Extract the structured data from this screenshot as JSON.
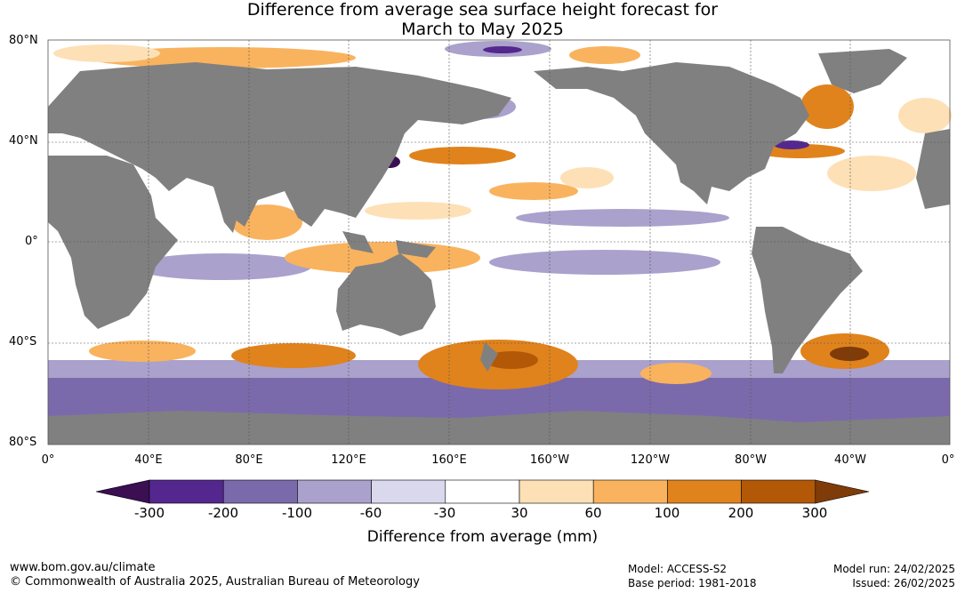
{
  "title": {
    "line1": "Difference from average sea surface height forecast for",
    "line2": "March to May 2025"
  },
  "lat_labels": [
    "80°N",
    "40°N",
    "0°",
    "40°S",
    "80°S"
  ],
  "lon_labels": [
    "0°",
    "40°E",
    "80°E",
    "120°E",
    "160°E",
    "160°W",
    "120°W",
    "80°W",
    "40°W",
    "0°"
  ],
  "colorbar": {
    "title": "Difference from average (mm)",
    "labels": [
      "-300",
      "-200",
      "-100",
      "-60",
      "-30",
      "30",
      "60",
      "100",
      "200",
      "300"
    ],
    "colors": [
      "#3b0f52",
      "#54278f",
      "#7b6aab",
      "#aaa1cc",
      "#d9d8ec",
      "#ffffff",
      "#fde0b6",
      "#f9b35e",
      "#e0831c",
      "#b35806",
      "#7f3b08"
    ]
  },
  "colors": {
    "land": "#808080",
    "ocean": "#ffffff",
    "grid": "#555555"
  },
  "footer": {
    "url": "www.bom.gov.au/climate",
    "copyright": "© Commonwealth of Australia 2025, Australian Bureau of Meteorology",
    "model": "Model: ACCESS-S2",
    "base_period": "Base period: 1981-2018",
    "model_run": "Model run: 24/02/2025",
    "issued": "Issued: 26/02/2025"
  }
}
